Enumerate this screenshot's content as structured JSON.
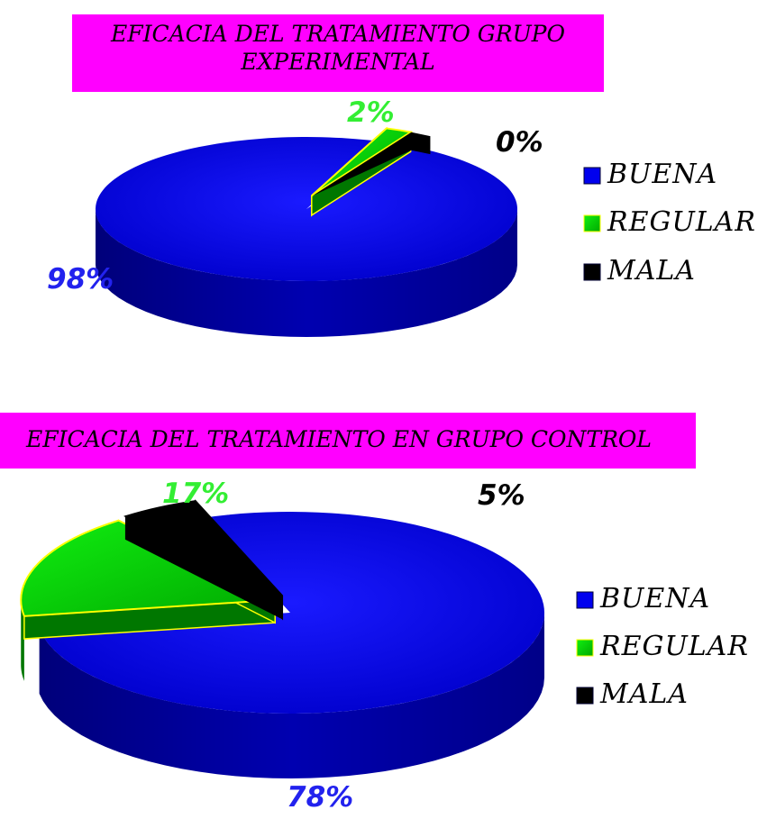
{
  "chart_data": [
    {
      "type": "pie",
      "title": "EFICACIA DEL TRATAMIENTO GRUPO EXPERIMENTAL",
      "categories": [
        "BUENA",
        "REGULAR",
        "MALA"
      ],
      "values": [
        98,
        2,
        0
      ],
      "value_labels": [
        "98%",
        "2%",
        "0%"
      ],
      "colors": [
        "#0000ee",
        "#00dd00",
        "#000000"
      ],
      "legend_position": "right"
    },
    {
      "type": "pie",
      "title": "EFICACIA DEL TRATAMIENTO EN GRUPO CONTROL",
      "categories": [
        "BUENA",
        "REGULAR",
        "MALA"
      ],
      "values": [
        78,
        17,
        5
      ],
      "value_labels": [
        "78%",
        "17%",
        "5%"
      ],
      "colors": [
        "#0000ee",
        "#00dd00",
        "#000000"
      ],
      "legend_position": "right"
    }
  ]
}
